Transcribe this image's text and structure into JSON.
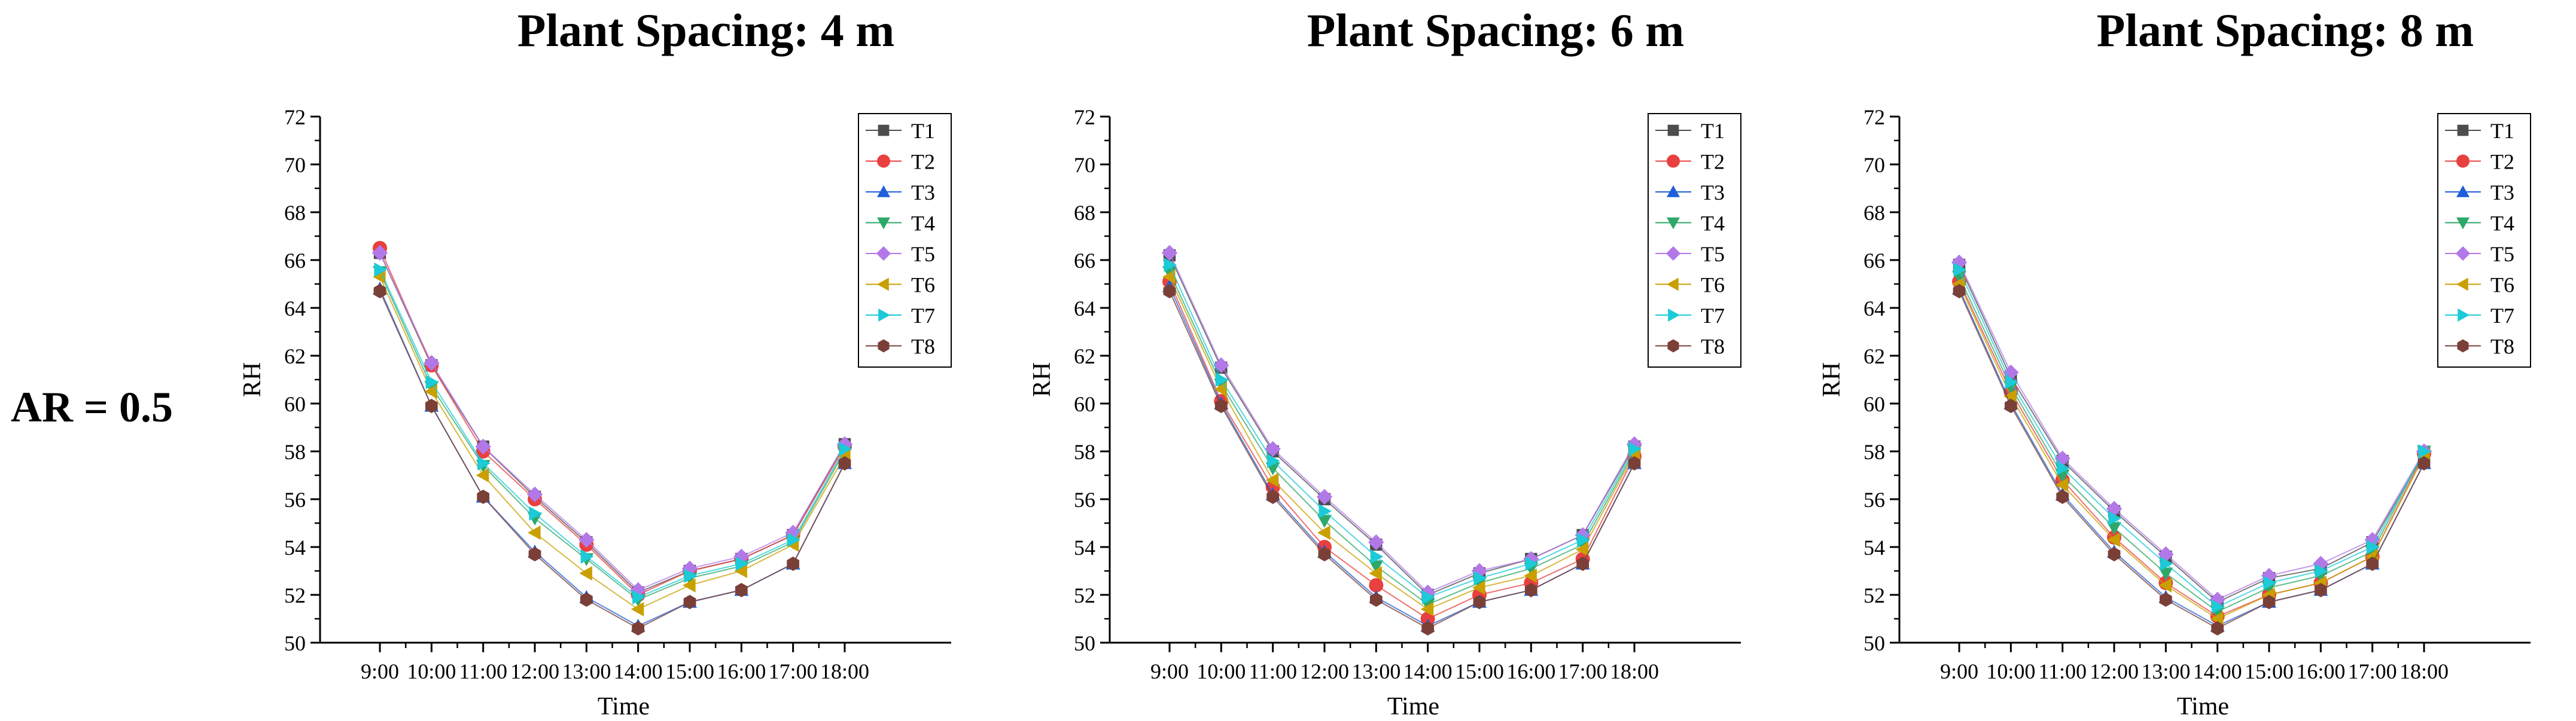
{
  "row_label": "AR = 0.5",
  "series_style": [
    {
      "name": "T1",
      "color": "#4d4d4d",
      "marker": "square"
    },
    {
      "name": "T2",
      "color": "#e8403f",
      "marker": "circle"
    },
    {
      "name": "T3",
      "color": "#1f5fd8",
      "marker": "triangle-up"
    },
    {
      "name": "T4",
      "color": "#2ea86a",
      "marker": "triangle-down"
    },
    {
      "name": "T5",
      "color": "#b278e8",
      "marker": "diamond"
    },
    {
      "name": "T6",
      "color": "#c9a000",
      "marker": "triangle-left"
    },
    {
      "name": "T7",
      "color": "#1ccad8",
      "marker": "triangle-right"
    },
    {
      "name": "T8",
      "color": "#7a4038",
      "marker": "hexagon"
    }
  ],
  "chart_data": [
    {
      "type": "line",
      "title": "Plant Spacing: 4 m",
      "xlabel": "Time",
      "ylabel": "RH",
      "ylim": [
        50,
        72
      ],
      "yticks": [
        50,
        52,
        54,
        56,
        58,
        60,
        62,
        64,
        66,
        68,
        70,
        72
      ],
      "categories": [
        "9:00",
        "10:00",
        "11:00",
        "12:00",
        "13:00",
        "14:00",
        "15:00",
        "16:00",
        "17:00",
        "18:00"
      ],
      "legend_position": "top-right",
      "series": [
        {
          "name": "T1",
          "values": [
            66.3,
            61.6,
            58.2,
            56.1,
            54.2,
            52.1,
            53.0,
            53.5,
            54.5,
            58.3
          ]
        },
        {
          "name": "T2",
          "values": [
            66.5,
            61.6,
            58.0,
            56.0,
            54.1,
            52.0,
            53.0,
            53.5,
            54.5,
            58.2
          ]
        },
        {
          "name": "T3",
          "values": [
            64.8,
            59.9,
            56.1,
            53.8,
            51.9,
            50.7,
            51.7,
            52.2,
            53.3,
            57.5
          ]
        },
        {
          "name": "T4",
          "values": [
            65.5,
            60.7,
            57.4,
            55.2,
            53.5,
            51.8,
            52.7,
            53.2,
            54.2,
            58.0
          ]
        },
        {
          "name": "T5",
          "values": [
            66.3,
            61.7,
            58.2,
            56.2,
            54.3,
            52.2,
            53.1,
            53.6,
            54.6,
            58.3
          ]
        },
        {
          "name": "T6",
          "values": [
            65.3,
            60.5,
            57.0,
            54.6,
            52.9,
            51.4,
            52.4,
            53.0,
            54.1,
            57.8
          ]
        },
        {
          "name": "T7",
          "values": [
            65.6,
            60.9,
            57.5,
            55.4,
            53.6,
            51.9,
            52.8,
            53.3,
            54.3,
            58.1
          ]
        },
        {
          "name": "T8",
          "values": [
            64.7,
            59.9,
            56.1,
            53.7,
            51.8,
            50.6,
            51.7,
            52.2,
            53.3,
            57.5
          ]
        }
      ]
    },
    {
      "type": "line",
      "title": "Plant Spacing: 6 m",
      "xlabel": "Time",
      "ylabel": "RH",
      "ylim": [
        50,
        72
      ],
      "yticks": [
        50,
        52,
        54,
        56,
        58,
        60,
        62,
        64,
        66,
        68,
        70,
        72
      ],
      "categories": [
        "9:00",
        "10:00",
        "11:00",
        "12:00",
        "13:00",
        "14:00",
        "15:00",
        "16:00",
        "17:00",
        "18:00"
      ],
      "legend_position": "top-right",
      "series": [
        {
          "name": "T1",
          "values": [
            66.2,
            61.5,
            58.0,
            56.0,
            54.1,
            52.0,
            52.9,
            53.5,
            54.5,
            58.2
          ]
        },
        {
          "name": "T2",
          "values": [
            65.1,
            60.1,
            56.5,
            54.0,
            52.4,
            51.0,
            52.0,
            52.5,
            53.5,
            57.8
          ]
        },
        {
          "name": "T3",
          "values": [
            64.9,
            60.0,
            56.2,
            53.8,
            51.9,
            50.7,
            51.7,
            52.2,
            53.3,
            57.5
          ]
        },
        {
          "name": "T4",
          "values": [
            65.5,
            60.8,
            57.3,
            55.1,
            53.2,
            51.6,
            52.5,
            53.1,
            54.1,
            58.0
          ]
        },
        {
          "name": "T5",
          "values": [
            66.3,
            61.6,
            58.1,
            56.1,
            54.2,
            52.1,
            53.0,
            53.5,
            54.5,
            58.3
          ]
        },
        {
          "name": "T6",
          "values": [
            65.3,
            60.6,
            56.8,
            54.6,
            52.9,
            51.4,
            52.3,
            52.8,
            53.9,
            57.9
          ]
        },
        {
          "name": "T7",
          "values": [
            65.8,
            61.0,
            57.6,
            55.5,
            53.6,
            51.9,
            52.7,
            53.3,
            54.3,
            58.1
          ]
        },
        {
          "name": "T8",
          "values": [
            64.7,
            59.9,
            56.1,
            53.7,
            51.8,
            50.6,
            51.7,
            52.2,
            53.3,
            57.5
          ]
        }
      ]
    },
    {
      "type": "line",
      "title": "Plant Spacing: 8 m",
      "xlabel": "Time",
      "ylabel": "RH",
      "ylim": [
        50,
        72
      ],
      "yticks": [
        50,
        52,
        54,
        56,
        58,
        60,
        62,
        64,
        66,
        68,
        70,
        72
      ],
      "categories": [
        "9:00",
        "10:00",
        "11:00",
        "12:00",
        "13:00",
        "14:00",
        "15:00",
        "16:00",
        "17:00",
        "18:00"
      ],
      "legend_position": "top-right",
      "series": [
        {
          "name": "T1",
          "values": [
            65.8,
            61.1,
            57.6,
            55.5,
            53.6,
            51.7,
            52.7,
            53.1,
            54.2,
            57.9
          ]
        },
        {
          "name": "T2",
          "values": [
            65.1,
            60.5,
            56.8,
            54.4,
            52.5,
            51.1,
            52.0,
            52.5,
            53.6,
            57.9
          ]
        },
        {
          "name": "T3",
          "values": [
            64.8,
            60.0,
            56.2,
            53.8,
            51.9,
            50.7,
            51.7,
            52.2,
            53.3,
            57.5
          ]
        },
        {
          "name": "T4",
          "values": [
            65.3,
            60.7,
            57.0,
            54.8,
            52.9,
            51.3,
            52.3,
            52.8,
            53.8,
            58.0
          ]
        },
        {
          "name": "T5",
          "values": [
            65.9,
            61.3,
            57.7,
            55.6,
            53.7,
            51.8,
            52.8,
            53.3,
            54.3,
            58.0
          ]
        },
        {
          "name": "T6",
          "values": [
            65.0,
            60.3,
            56.6,
            54.3,
            52.4,
            51.0,
            52.0,
            52.5,
            53.6,
            57.8
          ]
        },
        {
          "name": "T7",
          "values": [
            65.6,
            60.9,
            57.3,
            55.2,
            53.3,
            51.5,
            52.5,
            53.0,
            54.0,
            58.0
          ]
        },
        {
          "name": "T8",
          "values": [
            64.7,
            59.9,
            56.1,
            53.7,
            51.8,
            50.6,
            51.7,
            52.2,
            53.3,
            57.5
          ]
        }
      ]
    }
  ]
}
